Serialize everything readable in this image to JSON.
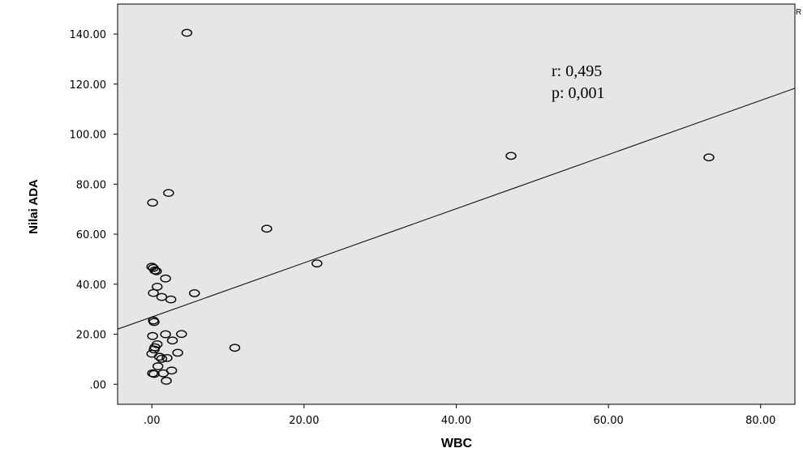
{
  "chart_data": {
    "type": "scatter",
    "xlabel": "WBC",
    "ylabel": "Nilai ADA",
    "xlim": [
      -4.5,
      84.5
    ],
    "ylim": [
      -8,
      152
    ],
    "xticks": [
      0,
      20,
      40,
      60,
      80
    ],
    "xtick_labels": [
      ".00",
      "20.00",
      "40.00",
      "60.00",
      "80.00"
    ],
    "yticks": [
      0,
      20,
      40,
      60,
      80,
      100,
      120,
      140
    ],
    "ytick_labels": [
      ".00",
      "20.00",
      "40.00",
      "60.00",
      "80.00",
      "100.00",
      "120.00",
      "140.00"
    ],
    "grid": false,
    "background_color": "#e6e6e6",
    "marker": "hollow-circle",
    "fit_line": {
      "slope": 1.082,
      "intercept": 26.9
    },
    "annotations": [
      "r: 0,495",
      "p: 0,001"
    ],
    "corner_mark": "R",
    "points": [
      {
        "x": 4.6,
        "y": 140.5
      },
      {
        "x": 2.2,
        "y": 76.5
      },
      {
        "x": 0.1,
        "y": 72.6
      },
      {
        "x": 47.2,
        "y": 91.3
      },
      {
        "x": 73.2,
        "y": 90.7
      },
      {
        "x": 15.1,
        "y": 62.2
      },
      {
        "x": 21.7,
        "y": 48.3
      },
      {
        "x": 0.0,
        "y": 47.0
      },
      {
        "x": 0.2,
        "y": 46.5
      },
      {
        "x": 0.4,
        "y": 45.5
      },
      {
        "x": 0.6,
        "y": 45.2
      },
      {
        "x": 1.8,
        "y": 42.3
      },
      {
        "x": 0.7,
        "y": 39.0
      },
      {
        "x": 0.2,
        "y": 36.5
      },
      {
        "x": 5.6,
        "y": 36.4
      },
      {
        "x": 1.3,
        "y": 34.9
      },
      {
        "x": 2.5,
        "y": 33.9
      },
      {
        "x": 0.2,
        "y": 25.5
      },
      {
        "x": 0.3,
        "y": 24.9
      },
      {
        "x": 3.9,
        "y": 20.1
      },
      {
        "x": 1.8,
        "y": 20.0
      },
      {
        "x": 0.1,
        "y": 19.3
      },
      {
        "x": 2.7,
        "y": 17.5
      },
      {
        "x": 0.7,
        "y": 16.0
      },
      {
        "x": 0.4,
        "y": 14.8
      },
      {
        "x": 0.3,
        "y": 13.9
      },
      {
        "x": 10.9,
        "y": 14.6
      },
      {
        "x": 0.0,
        "y": 12.2
      },
      {
        "x": 3.4,
        "y": 12.6
      },
      {
        "x": 1.0,
        "y": 11.0
      },
      {
        "x": 1.3,
        "y": 10.2
      },
      {
        "x": 2.0,
        "y": 10.5
      },
      {
        "x": 0.8,
        "y": 7.2
      },
      {
        "x": 2.6,
        "y": 5.5
      },
      {
        "x": 0.1,
        "y": 4.4
      },
      {
        "x": 0.3,
        "y": 4.1
      },
      {
        "x": 1.5,
        "y": 4.4
      },
      {
        "x": 1.9,
        "y": 1.4
      }
    ]
  }
}
